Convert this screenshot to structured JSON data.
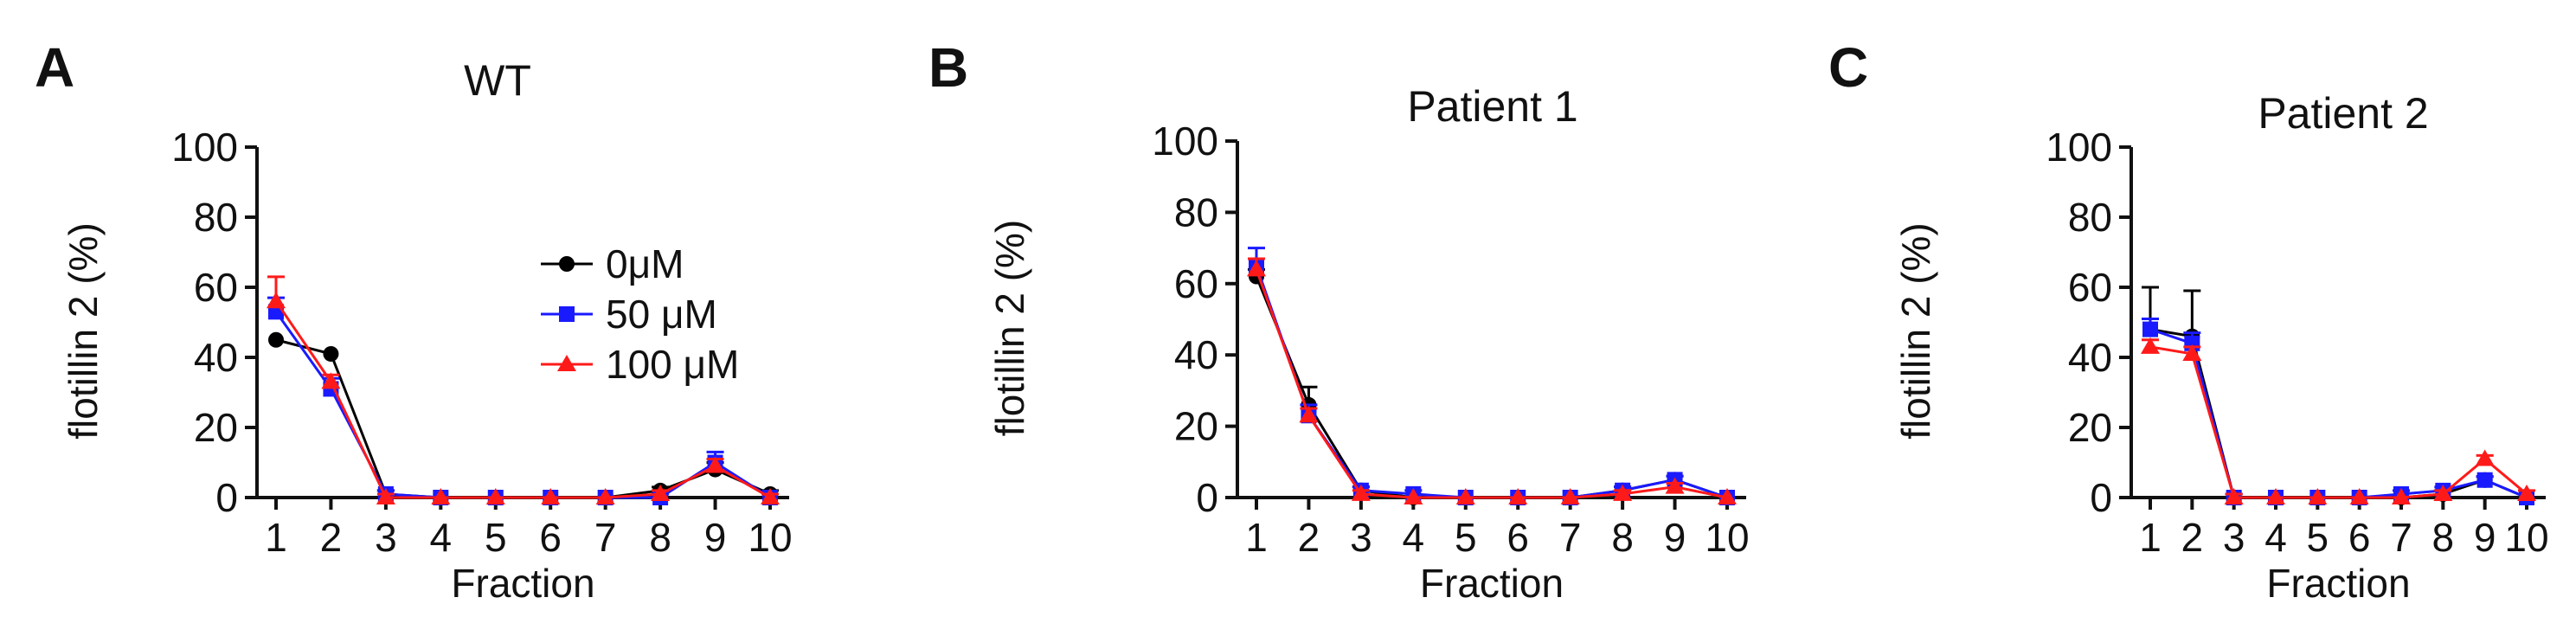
{
  "chart_data": [
    {
      "type": "line",
      "panel_label": "A",
      "title": "WT",
      "xlabel": "Fraction",
      "ylabel": "flotillin 2 (%)",
      "categories": [
        "1",
        "2",
        "3",
        "4",
        "5",
        "6",
        "7",
        "8",
        "9",
        "10"
      ],
      "yticks": [
        "0",
        "20",
        "40",
        "60",
        "80",
        "100"
      ],
      "ylim": [
        0,
        100
      ],
      "legend_position": "upper-right",
      "series": [
        {
          "name": "0μM",
          "color": "#000000",
          "marker": "circle",
          "values": [
            45,
            41,
            1,
            0,
            0,
            0,
            0,
            2,
            8,
            1
          ],
          "error": [
            0,
            0,
            1,
            0,
            0,
            0,
            0,
            1,
            2,
            1
          ]
        },
        {
          "name": "50 μM",
          "color": "#1a1aff",
          "marker": "square",
          "values": [
            53,
            31,
            1,
            0,
            0,
            0,
            0,
            0,
            10,
            0
          ],
          "error": [
            4,
            3,
            1,
            0,
            0,
            0,
            0,
            1,
            3,
            1
          ]
        },
        {
          "name": "100 μM",
          "color": "#ff1a1a",
          "marker": "triangle",
          "values": [
            56,
            33,
            0,
            0,
            0,
            0,
            0,
            1,
            9,
            0
          ],
          "error": [
            7,
            2,
            1,
            0,
            0,
            0,
            0,
            1,
            2,
            1
          ]
        }
      ]
    },
    {
      "type": "line",
      "panel_label": "B",
      "title": "Patient 1",
      "xlabel": "Fraction",
      "ylabel": "flotillin 2 (%)",
      "categories": [
        "1",
        "2",
        "3",
        "4",
        "5",
        "6",
        "7",
        "8",
        "9",
        "10"
      ],
      "yticks": [
        "0",
        "20",
        "40",
        "60",
        "80",
        "100"
      ],
      "ylim": [
        0,
        100
      ],
      "series": [
        {
          "name": "0μM",
          "color": "#000000",
          "marker": "circle",
          "values": [
            62,
            26,
            2,
            0,
            0,
            0,
            0,
            2,
            5,
            0
          ],
          "error": [
            2,
            5,
            1,
            0,
            0,
            0,
            0,
            1,
            1,
            0
          ]
        },
        {
          "name": "50 μM",
          "color": "#1a1aff",
          "marker": "square",
          "values": [
            65,
            23,
            2,
            1,
            0,
            0,
            0,
            2,
            5,
            0
          ],
          "error": [
            5,
            3,
            1,
            1,
            0,
            0,
            0,
            1,
            1,
            0
          ]
        },
        {
          "name": "100 μM",
          "color": "#ff1a1a",
          "marker": "triangle",
          "values": [
            64,
            23,
            1,
            0,
            0,
            0,
            0,
            1,
            3,
            0
          ],
          "error": [
            3,
            2,
            1,
            0,
            0,
            0,
            0,
            1,
            1,
            0
          ]
        }
      ]
    },
    {
      "type": "line",
      "panel_label": "C",
      "title": "Patient 2",
      "xlabel": "Fraction",
      "ylabel": "flotillin 2 (%)",
      "categories": [
        "1",
        "2",
        "3",
        "4",
        "5",
        "6",
        "7",
        "8",
        "9",
        "10"
      ],
      "yticks": [
        "0",
        "20",
        "40",
        "60",
        "80",
        "100"
      ],
      "ylim": [
        0,
        100
      ],
      "series": [
        {
          "name": "0μM",
          "color": "#000000",
          "marker": "circle",
          "values": [
            48,
            46,
            0,
            0,
            0,
            0,
            0,
            1,
            5,
            0
          ],
          "error": [
            12,
            13,
            1,
            0,
            0,
            0,
            0,
            1,
            1,
            0
          ]
        },
        {
          "name": "50 μM",
          "color": "#1a1aff",
          "marker": "square",
          "values": [
            48,
            44,
            0,
            0,
            0,
            0,
            1,
            2,
            5,
            0
          ],
          "error": [
            3,
            3,
            1,
            0,
            0,
            0,
            1,
            1,
            1,
            0
          ]
        },
        {
          "name": "100 μM",
          "color": "#ff1a1a",
          "marker": "triangle",
          "values": [
            43,
            41,
            0,
            0,
            0,
            0,
            0,
            1,
            11,
            1
          ],
          "error": [
            2,
            2,
            1,
            0,
            0,
            0,
            0,
            1,
            1,
            1
          ]
        }
      ]
    }
  ]
}
